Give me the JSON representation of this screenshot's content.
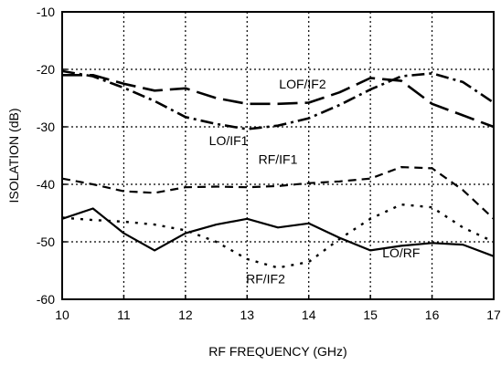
{
  "chart_data": {
    "type": "line",
    "title": "",
    "xlabel": "RF FREQUENCY (GHz)",
    "ylabel": "ISOLATION  (dB)",
    "xlim": [
      10,
      17
    ],
    "ylim": [
      -60,
      -10
    ],
    "xticks": [
      10,
      11,
      12,
      13,
      14,
      15,
      16,
      17
    ],
    "yticks": [
      -60,
      -50,
      -40,
      -30,
      -20,
      -10
    ],
    "grid": true,
    "series": [
      {
        "name": "LOF/IF2",
        "style": "long-dash",
        "x": [
          10,
          10.5,
          11,
          11.5,
          12,
          12.5,
          13,
          13.5,
          14,
          14.5,
          15,
          15.5,
          16,
          16.5,
          17
        ],
        "y": [
          -21,
          -21,
          -22.5,
          -23.7,
          -23.3,
          -25,
          -26,
          -26,
          -25.8,
          -24,
          -21.5,
          -22,
          -26,
          -28,
          -30
        ]
      },
      {
        "name": "LO/IF1",
        "style": "dash-dot",
        "x": [
          10,
          10.5,
          11,
          11.5,
          12,
          12.5,
          13,
          13.5,
          14,
          14.5,
          15,
          15.5,
          16,
          16.5,
          17
        ],
        "y": [
          -20.3,
          -21.2,
          -23.2,
          -25.5,
          -28.3,
          -29.5,
          -30.4,
          -29.8,
          -28.5,
          -26.2,
          -23.5,
          -21.2,
          -20.7,
          -22.2,
          -25.8
        ]
      },
      {
        "name": "RF/IF1",
        "style": "short-dash",
        "x": [
          10,
          10.5,
          11,
          11.5,
          12,
          12.5,
          13,
          13.5,
          14,
          14.5,
          15,
          15.5,
          16,
          16.5,
          17
        ],
        "y": [
          -39,
          -40,
          -41.2,
          -41.5,
          -40.5,
          -40.4,
          -40.5,
          -40.3,
          -39.8,
          -39.5,
          -39,
          -37,
          -37.2,
          -41,
          -46
        ]
      },
      {
        "name": "RF/IF2",
        "style": "dotted",
        "x": [
          10,
          10.5,
          11,
          11.5,
          12,
          12.5,
          13,
          13.5,
          14,
          14.5,
          15,
          15.5,
          16,
          16.5,
          17
        ],
        "y": [
          -45.8,
          -46.2,
          -46.5,
          -47,
          -48,
          -50,
          -53,
          -54.5,
          -53.5,
          -49.5,
          -46,
          -43.5,
          -44,
          -47.5,
          -50
        ]
      },
      {
        "name": "LO/RF",
        "style": "solid",
        "x": [
          10,
          10.5,
          11,
          11.5,
          12,
          12.5,
          13,
          13.5,
          14,
          14.5,
          15,
          15.5,
          16,
          16.5,
          17
        ],
        "y": [
          -46,
          -44.2,
          -48.5,
          -51.5,
          -48.5,
          -47,
          -46,
          -47.5,
          -46.8,
          -49.3,
          -51.5,
          -50.7,
          -50.2,
          -50.5,
          -52.5
        ]
      }
    ],
    "annotations": [
      {
        "text": "LOF/IF2",
        "x": 13.9,
        "y": -23.3
      },
      {
        "text": "LO/IF1",
        "x": 12.7,
        "y": -33.2
      },
      {
        "text": "RF/IF1",
        "x": 13.5,
        "y": -36.4
      },
      {
        "text": "RF/IF2",
        "x": 13.3,
        "y": -57.2
      },
      {
        "text": "LO/RF",
        "x": 15.5,
        "y": -52.7
      }
    ]
  }
}
